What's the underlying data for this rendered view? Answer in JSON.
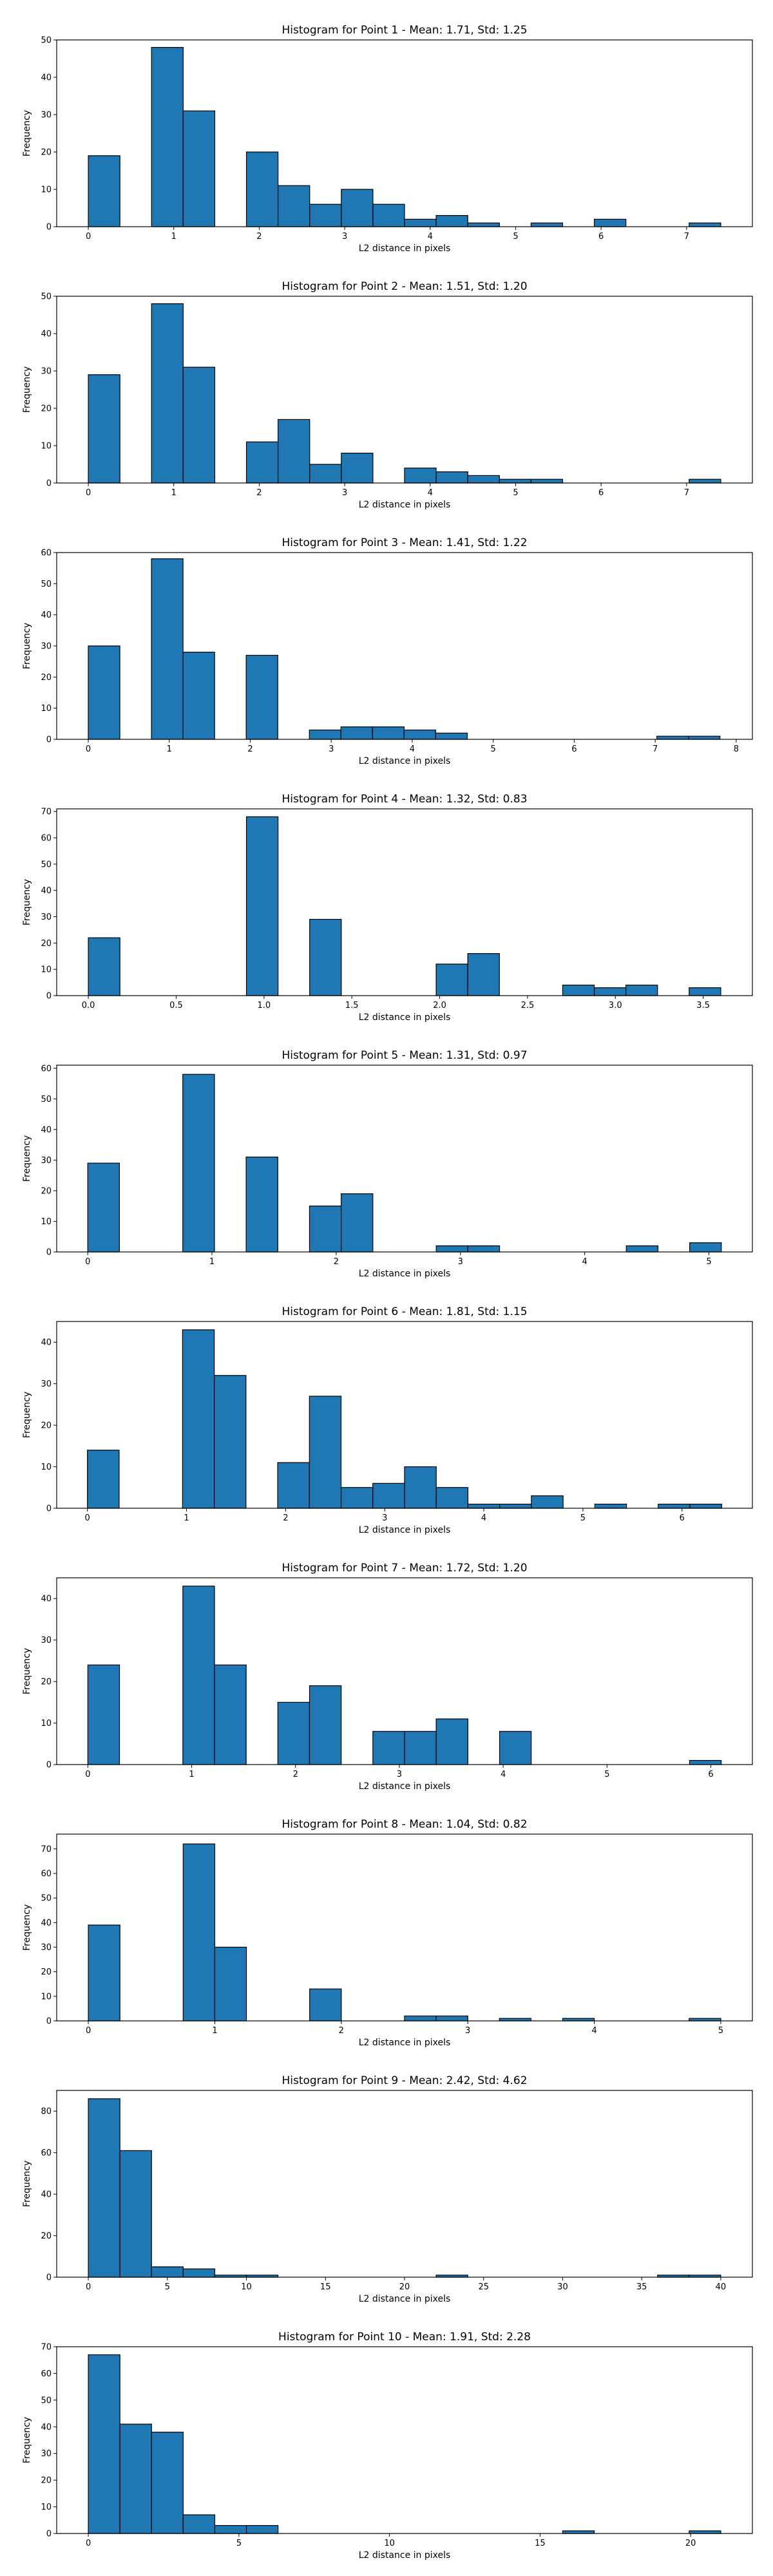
{
  "colors": {
    "bar_fill": "#1f77b4",
    "bar_edge": "#000000",
    "axes": "#000000",
    "background": "#ffffff"
  },
  "chart_data": [
    {
      "type": "bar",
      "title": "Histogram for Point 1 - Mean: 1.71, Std: 1.25",
      "xlabel": "L2 distance in pixels",
      "ylabel": "Frequency",
      "xlim": [
        -0.37,
        7.77
      ],
      "ylim": [
        0,
        50
      ],
      "xticks": [
        0,
        1,
        2,
        3,
        4,
        5,
        6,
        7
      ],
      "yticks": [
        0,
        10,
        20,
        30,
        40,
        50
      ],
      "bins": [
        {
          "x0": 0.0,
          "x1": 0.37,
          "count": 19
        },
        {
          "x0": 0.74,
          "x1": 1.11,
          "count": 48
        },
        {
          "x0": 1.11,
          "x1": 1.48,
          "count": 31
        },
        {
          "x0": 1.85,
          "x1": 2.22,
          "count": 20
        },
        {
          "x0": 2.22,
          "x1": 2.59,
          "count": 11
        },
        {
          "x0": 2.59,
          "x1": 2.96,
          "count": 6
        },
        {
          "x0": 2.96,
          "x1": 3.33,
          "count": 10
        },
        {
          "x0": 3.33,
          "x1": 3.7,
          "count": 6
        },
        {
          "x0": 3.7,
          "x1": 4.07,
          "count": 2
        },
        {
          "x0": 4.07,
          "x1": 4.44,
          "count": 3
        },
        {
          "x0": 4.44,
          "x1": 4.81,
          "count": 1
        },
        {
          "x0": 5.18,
          "x1": 5.55,
          "count": 1
        },
        {
          "x0": 5.92,
          "x1": 6.29,
          "count": 2
        },
        {
          "x0": 7.03,
          "x1": 7.4,
          "count": 1
        }
      ]
    },
    {
      "type": "bar",
      "title": "Histogram for Point 2 - Mean: 1.51, Std: 1.20",
      "xlabel": "L2 distance in pixels",
      "ylabel": "Frequency",
      "xlim": [
        -0.37,
        7.77
      ],
      "ylim": [
        0,
        50
      ],
      "xticks": [
        0,
        1,
        2,
        3,
        4,
        5,
        6,
        7
      ],
      "yticks": [
        0,
        10,
        20,
        30,
        40,
        50
      ],
      "bins": [
        {
          "x0": 0.0,
          "x1": 0.37,
          "count": 29
        },
        {
          "x0": 0.74,
          "x1": 1.11,
          "count": 48
        },
        {
          "x0": 1.11,
          "x1": 1.48,
          "count": 31
        },
        {
          "x0": 1.85,
          "x1": 2.22,
          "count": 11
        },
        {
          "x0": 2.22,
          "x1": 2.59,
          "count": 17
        },
        {
          "x0": 2.59,
          "x1": 2.96,
          "count": 5
        },
        {
          "x0": 2.96,
          "x1": 3.33,
          "count": 8
        },
        {
          "x0": 3.7,
          "x1": 4.07,
          "count": 4
        },
        {
          "x0": 4.07,
          "x1": 4.44,
          "count": 3
        },
        {
          "x0": 4.44,
          "x1": 4.81,
          "count": 2
        },
        {
          "x0": 4.81,
          "x1": 5.18,
          "count": 1
        },
        {
          "x0": 5.18,
          "x1": 5.55,
          "count": 1
        },
        {
          "x0": 7.03,
          "x1": 7.4,
          "count": 1
        }
      ]
    },
    {
      "type": "bar",
      "title": "Histogram for Point 3 - Mean: 1.41, Std: 1.22",
      "xlabel": "L2 distance in pixels",
      "ylabel": "Frequency",
      "xlim": [
        -0.39,
        8.2
      ],
      "ylim": [
        0,
        60
      ],
      "xticks": [
        0,
        1,
        2,
        3,
        4,
        5,
        6,
        7,
        8
      ],
      "yticks": [
        0,
        10,
        20,
        30,
        40,
        50,
        60
      ],
      "bins": [
        {
          "x0": 0.0,
          "x1": 0.39,
          "count": 30
        },
        {
          "x0": 0.78,
          "x1": 1.17,
          "count": 58
        },
        {
          "x0": 1.17,
          "x1": 1.56,
          "count": 28
        },
        {
          "x0": 1.95,
          "x1": 2.34,
          "count": 27
        },
        {
          "x0": 2.73,
          "x1": 3.12,
          "count": 3
        },
        {
          "x0": 3.12,
          "x1": 3.51,
          "count": 4
        },
        {
          "x0": 3.51,
          "x1": 3.9,
          "count": 4
        },
        {
          "x0": 3.9,
          "x1": 4.29,
          "count": 3
        },
        {
          "x0": 4.29,
          "x1": 4.68,
          "count": 2
        },
        {
          "x0": 7.02,
          "x1": 7.41,
          "count": 1
        },
        {
          "x0": 7.41,
          "x1": 7.8,
          "count": 1
        }
      ]
    },
    {
      "type": "bar",
      "title": "Histogram for Point 4 - Mean: 1.32, Std: 0.83",
      "xlabel": "L2 distance in pixels",
      "ylabel": "Frequency",
      "xlim": [
        -0.18,
        3.78
      ],
      "ylim": [
        0,
        71
      ],
      "xticks": [
        0.0,
        0.5,
        1.0,
        1.5,
        2.0,
        2.5,
        3.0,
        3.5
      ],
      "yticks": [
        0,
        10,
        20,
        30,
        40,
        50,
        60,
        70
      ],
      "xtick_labels": [
        "0.0",
        "0.5",
        "1.0",
        "1.5",
        "2.0",
        "2.5",
        "3.0",
        "3.5"
      ],
      "bins": [
        {
          "x0": 0.0,
          "x1": 0.18,
          "count": 22
        },
        {
          "x0": 0.9,
          "x1": 1.08,
          "count": 68
        },
        {
          "x0": 1.26,
          "x1": 1.44,
          "count": 29
        },
        {
          "x0": 1.98,
          "x1": 2.16,
          "count": 12
        },
        {
          "x0": 2.16,
          "x1": 2.34,
          "count": 16
        },
        {
          "x0": 2.7,
          "x1": 2.88,
          "count": 4
        },
        {
          "x0": 2.88,
          "x1": 3.06,
          "count": 3
        },
        {
          "x0": 3.06,
          "x1": 3.24,
          "count": 4
        },
        {
          "x0": 3.42,
          "x1": 3.6,
          "count": 3
        }
      ]
    },
    {
      "type": "bar",
      "title": "Histogram for Point 5 - Mean: 1.31, Std: 0.97",
      "xlabel": "L2 distance in pixels",
      "ylabel": "Frequency",
      "xlim": [
        -0.25,
        5.35
      ],
      "ylim": [
        0,
        61
      ],
      "xticks": [
        0,
        1,
        2,
        3,
        4,
        5
      ],
      "yticks": [
        0,
        10,
        20,
        30,
        40,
        50,
        60
      ],
      "bins": [
        {
          "x0": 0.0,
          "x1": 0.255,
          "count": 29
        },
        {
          "x0": 0.765,
          "x1": 1.02,
          "count": 58
        },
        {
          "x0": 1.275,
          "x1": 1.53,
          "count": 31
        },
        {
          "x0": 1.785,
          "x1": 2.04,
          "count": 15
        },
        {
          "x0": 2.04,
          "x1": 2.295,
          "count": 19
        },
        {
          "x0": 2.805,
          "x1": 3.06,
          "count": 2
        },
        {
          "x0": 3.06,
          "x1": 3.315,
          "count": 2
        },
        {
          "x0": 4.335,
          "x1": 4.59,
          "count": 2
        },
        {
          "x0": 4.845,
          "x1": 5.1,
          "count": 3
        }
      ]
    },
    {
      "type": "bar",
      "title": "Histogram for Point 6 - Mean: 1.81, Std: 1.15",
      "xlabel": "L2 distance in pixels",
      "ylabel": "Frequency",
      "xlim": [
        -0.31,
        6.71
      ],
      "ylim": [
        0,
        45
      ],
      "xticks": [
        0,
        1,
        2,
        3,
        4,
        5,
        6
      ],
      "yticks": [
        0,
        10,
        20,
        30,
        40
      ],
      "bins": [
        {
          "x0": 0.0,
          "x1": 0.32,
          "count": 14
        },
        {
          "x0": 0.96,
          "x1": 1.28,
          "count": 43
        },
        {
          "x0": 1.28,
          "x1": 1.6,
          "count": 32
        },
        {
          "x0": 1.92,
          "x1": 2.24,
          "count": 11
        },
        {
          "x0": 2.24,
          "x1": 2.56,
          "count": 27
        },
        {
          "x0": 2.56,
          "x1": 2.88,
          "count": 5
        },
        {
          "x0": 2.88,
          "x1": 3.2,
          "count": 6
        },
        {
          "x0": 3.2,
          "x1": 3.52,
          "count": 10
        },
        {
          "x0": 3.52,
          "x1": 3.84,
          "count": 5
        },
        {
          "x0": 3.84,
          "x1": 4.16,
          "count": 1
        },
        {
          "x0": 4.16,
          "x1": 4.48,
          "count": 1
        },
        {
          "x0": 4.48,
          "x1": 4.8,
          "count": 3
        },
        {
          "x0": 5.12,
          "x1": 5.44,
          "count": 1
        },
        {
          "x0": 5.76,
          "x1": 6.08,
          "count": 1
        },
        {
          "x0": 6.08,
          "x1": 6.4,
          "count": 1
        }
      ]
    },
    {
      "type": "bar",
      "title": "Histogram for Point 7 - Mean: 1.72, Std: 1.20",
      "xlabel": "L2 distance in pixels",
      "ylabel": "Frequency",
      "xlim": [
        -0.3,
        6.4
      ],
      "ylim": [
        0,
        45
      ],
      "xticks": [
        0,
        1,
        2,
        3,
        4,
        5,
        6
      ],
      "yticks": [
        0,
        10,
        20,
        30,
        40
      ],
      "bins": [
        {
          "x0": 0.0,
          "x1": 0.305,
          "count": 24
        },
        {
          "x0": 0.915,
          "x1": 1.22,
          "count": 43
        },
        {
          "x0": 1.22,
          "x1": 1.525,
          "count": 24
        },
        {
          "x0": 1.83,
          "x1": 2.135,
          "count": 15
        },
        {
          "x0": 2.135,
          "x1": 2.44,
          "count": 19
        },
        {
          "x0": 2.745,
          "x1": 3.05,
          "count": 8
        },
        {
          "x0": 3.05,
          "x1": 3.355,
          "count": 8
        },
        {
          "x0": 3.355,
          "x1": 3.66,
          "count": 11
        },
        {
          "x0": 3.965,
          "x1": 4.27,
          "count": 8
        },
        {
          "x0": 5.795,
          "x1": 6.1,
          "count": 1
        }
      ]
    },
    {
      "type": "bar",
      "title": "Histogram for Point 8 - Mean: 1.04, Std: 0.82",
      "xlabel": "L2 distance in pixels",
      "ylabel": "Frequency",
      "xlim": [
        -0.25,
        5.25
      ],
      "ylim": [
        0,
        76
      ],
      "xticks": [
        0,
        1,
        2,
        3,
        4,
        5
      ],
      "yticks": [
        0,
        10,
        20,
        30,
        40,
        50,
        60,
        70
      ],
      "bins": [
        {
          "x0": 0.0,
          "x1": 0.25,
          "count": 39
        },
        {
          "x0": 0.75,
          "x1": 1.0,
          "count": 72
        },
        {
          "x0": 1.0,
          "x1": 1.25,
          "count": 30
        },
        {
          "x0": 1.75,
          "x1": 2.0,
          "count": 13
        },
        {
          "x0": 2.5,
          "x1": 2.75,
          "count": 2
        },
        {
          "x0": 2.75,
          "x1": 3.0,
          "count": 2
        },
        {
          "x0": 3.25,
          "x1": 3.5,
          "count": 1
        },
        {
          "x0": 3.75,
          "x1": 4.0,
          "count": 1
        },
        {
          "x0": 4.75,
          "x1": 5.0,
          "count": 1
        }
      ]
    },
    {
      "type": "bar",
      "title": "Histogram for Point 9 - Mean: 2.42, Std: 4.62",
      "xlabel": "L2 distance in pixels",
      "ylabel": "Frequency",
      "xlim": [
        -2.0,
        42.0
      ],
      "ylim": [
        0,
        90
      ],
      "xticks": [
        0,
        5,
        10,
        15,
        20,
        25,
        30,
        35,
        40
      ],
      "yticks": [
        0,
        20,
        40,
        60,
        80
      ],
      "bins": [
        {
          "x0": 0.0,
          "x1": 2.0,
          "count": 86
        },
        {
          "x0": 2.0,
          "x1": 4.0,
          "count": 61
        },
        {
          "x0": 4.0,
          "x1": 6.0,
          "count": 5
        },
        {
          "x0": 6.0,
          "x1": 8.0,
          "count": 4
        },
        {
          "x0": 8.0,
          "x1": 10.0,
          "count": 1
        },
        {
          "x0": 10.0,
          "x1": 12.0,
          "count": 1
        },
        {
          "x0": 22.0,
          "x1": 24.0,
          "count": 1
        },
        {
          "x0": 36.0,
          "x1": 38.0,
          "count": 1
        },
        {
          "x0": 38.0,
          "x1": 40.0,
          "count": 1
        }
      ]
    },
    {
      "type": "bar",
      "title": "Histogram for Point 10 - Mean: 1.91, Std: 2.28",
      "xlabel": "L2 distance in pixels",
      "ylabel": "Frequency",
      "xlim": [
        -1.05,
        22.05
      ],
      "ylim": [
        0,
        70
      ],
      "xticks": [
        0,
        5,
        10,
        15,
        20
      ],
      "yticks": [
        0,
        10,
        20,
        30,
        40,
        50,
        60,
        70
      ],
      "bins": [
        {
          "x0": 0.0,
          "x1": 1.05,
          "count": 67
        },
        {
          "x0": 1.05,
          "x1": 2.1,
          "count": 41
        },
        {
          "x0": 2.1,
          "x1": 3.15,
          "count": 38
        },
        {
          "x0": 3.15,
          "x1": 4.2,
          "count": 7
        },
        {
          "x0": 4.2,
          "x1": 5.25,
          "count": 3
        },
        {
          "x0": 5.25,
          "x1": 6.3,
          "count": 3
        },
        {
          "x0": 15.75,
          "x1": 16.8,
          "count": 1
        },
        {
          "x0": 19.95,
          "x1": 21.0,
          "count": 1
        }
      ]
    }
  ]
}
